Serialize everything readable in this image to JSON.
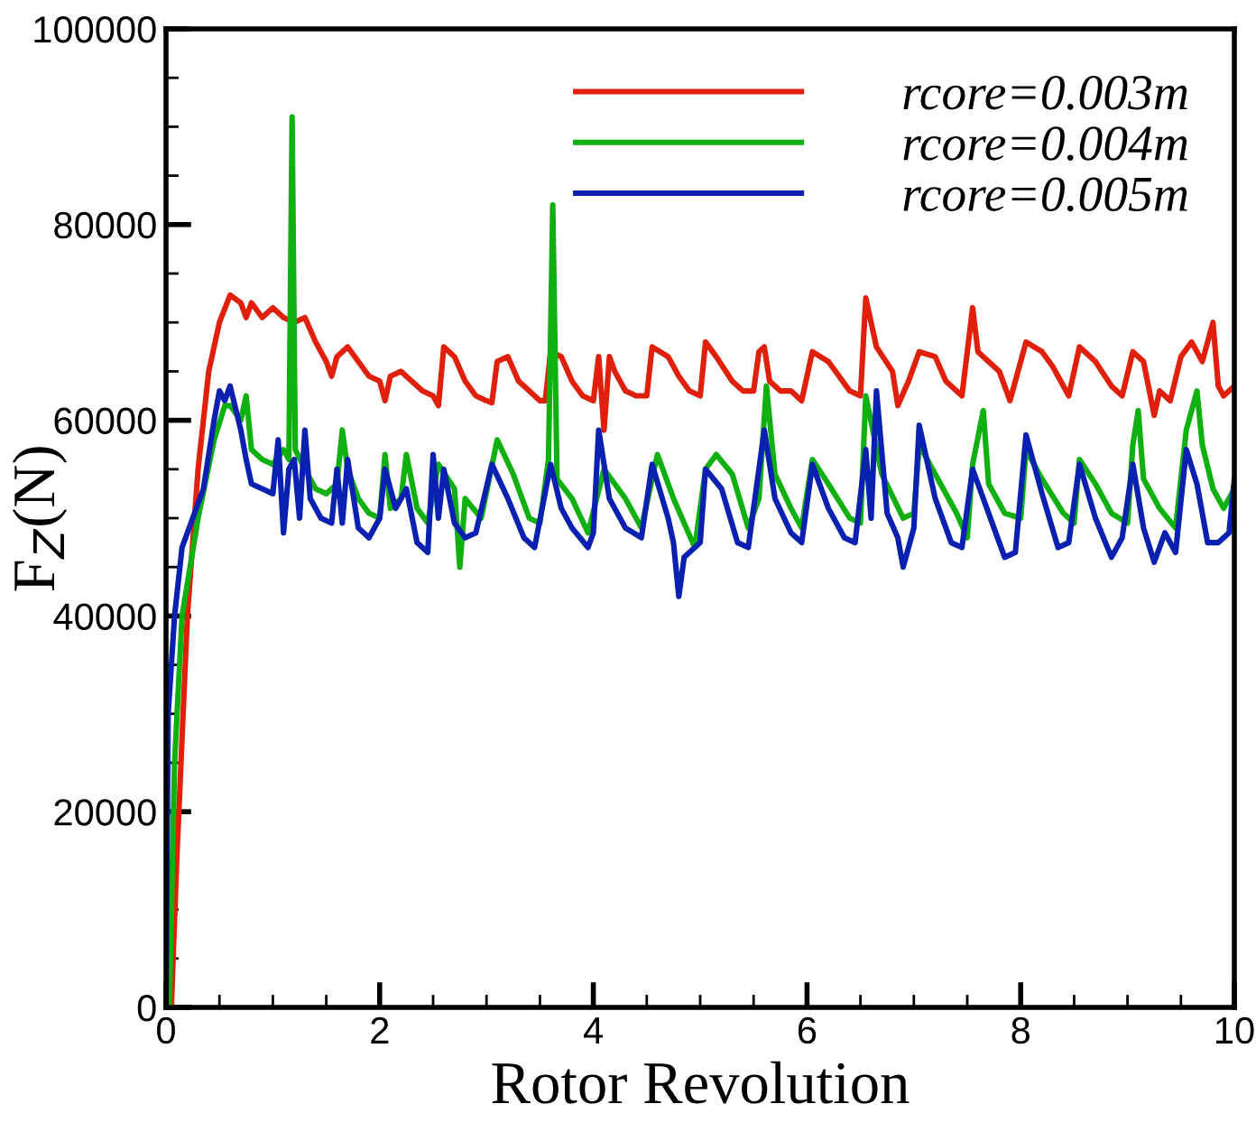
{
  "chart_data": {
    "type": "line",
    "xlabel": "Rotor Revolution",
    "ylabel": "F$_{Z}$(N)",
    "xlim": [
      0,
      10
    ],
    "ylim": [
      0,
      100000
    ],
    "xticks": [
      0,
      2,
      4,
      6,
      8,
      10
    ],
    "yticks": [
      0,
      20000,
      40000,
      60000,
      80000,
      100000
    ],
    "legend": "top right",
    "grid": false,
    "marker": "none",
    "line_style": "solid",
    "series": [
      {
        "name": "rcore=0.003m",
        "color": "#e0200a",
        "x": [
          0.05,
          0.1,
          0.2,
          0.3,
          0.4,
          0.5,
          0.6,
          0.7,
          0.75,
          0.8,
          0.9,
          1.0,
          1.1,
          1.2,
          1.3,
          1.4,
          1.5,
          1.55,
          1.6,
          1.7,
          1.8,
          1.9,
          2.0,
          2.05,
          2.1,
          2.2,
          2.3,
          2.4,
          2.5,
          2.55,
          2.6,
          2.7,
          2.8,
          2.9,
          3.0,
          3.05,
          3.1,
          3.2,
          3.3,
          3.4,
          3.5,
          3.55,
          3.6,
          3.7,
          3.8,
          3.9,
          4.0,
          4.05,
          4.1,
          4.15,
          4.2,
          4.3,
          4.4,
          4.5,
          4.55,
          4.7,
          4.8,
          4.9,
          5.0,
          5.05,
          5.15,
          5.3,
          5.4,
          5.5,
          5.55,
          5.6,
          5.65,
          5.75,
          5.85,
          5.95,
          6.05,
          6.2,
          6.3,
          6.4,
          6.5,
          6.55,
          6.65,
          6.8,
          6.85,
          6.95,
          7.05,
          7.2,
          7.3,
          7.45,
          7.55,
          7.6,
          7.8,
          7.9,
          8.05,
          8.2,
          8.3,
          8.45,
          8.55,
          8.7,
          8.85,
          8.95,
          9.05,
          9.15,
          9.25,
          9.3,
          9.4,
          9.5,
          9.6,
          9.7,
          9.8,
          9.85,
          9.9,
          10.0
        ],
        "values": [
          0,
          15000,
          40000,
          55000,
          65000,
          70000,
          72800,
          72000,
          70500,
          72000,
          70500,
          71500,
          70500,
          70000,
          70500,
          68000,
          66000,
          64500,
          66500,
          67500,
          66000,
          64500,
          64000,
          62000,
          64500,
          65000,
          64000,
          63000,
          62500,
          61500,
          67500,
          66500,
          64000,
          62500,
          62000,
          61800,
          66000,
          66500,
          64000,
          63000,
          62000,
          62000,
          67000,
          66500,
          64000,
          62500,
          62000,
          66500,
          59000,
          66500,
          65000,
          63000,
          62500,
          62500,
          67500,
          66500,
          64500,
          63000,
          62500,
          68000,
          66500,
          64000,
          63000,
          63000,
          67000,
          67500,
          64000,
          63000,
          63000,
          62000,
          67000,
          66000,
          64500,
          63000,
          62500,
          72500,
          67500,
          65000,
          61500,
          64000,
          67000,
          66500,
          64000,
          62500,
          71500,
          67000,
          65000,
          62000,
          68000,
          67000,
          65500,
          62500,
          67500,
          66000,
          63500,
          62500,
          67000,
          66000,
          60500,
          63000,
          62000,
          66500,
          68000,
          66000,
          70000,
          63500,
          62500,
          63500
        ]
      },
      {
        "name": "rcore=0.004m",
        "color": "#10b010",
        "x": [
          0.03,
          0.08,
          0.15,
          0.3,
          0.45,
          0.55,
          0.6,
          0.7,
          0.75,
          0.8,
          0.9,
          1.0,
          1.1,
          1.15,
          1.18,
          1.21,
          1.3,
          1.4,
          1.5,
          1.6,
          1.65,
          1.7,
          1.8,
          1.9,
          2.0,
          2.05,
          2.1,
          2.2,
          2.25,
          2.35,
          2.45,
          2.55,
          2.7,
          2.75,
          2.8,
          2.95,
          3.1,
          3.25,
          3.4,
          3.5,
          3.58,
          3.62,
          3.66,
          3.8,
          3.95,
          4.1,
          4.3,
          4.45,
          4.6,
          4.75,
          4.85,
          4.95,
          5.05,
          5.15,
          5.3,
          5.45,
          5.55,
          5.62,
          5.7,
          5.85,
          5.95,
          6.05,
          6.2,
          6.4,
          6.5,
          6.55,
          6.7,
          6.9,
          7.0,
          7.05,
          7.2,
          7.4,
          7.5,
          7.55,
          7.65,
          7.7,
          7.85,
          8.0,
          8.05,
          8.2,
          8.4,
          8.5,
          8.55,
          8.7,
          8.85,
          9.0,
          9.05,
          9.1,
          9.15,
          9.3,
          9.45,
          9.55,
          9.65,
          9.7,
          9.8,
          9.9,
          10.0
        ],
        "values": [
          0,
          25000,
          40000,
          50000,
          58000,
          61500,
          61500,
          60000,
          62500,
          57000,
          56000,
          55500,
          57000,
          56000,
          91000,
          57000,
          55000,
          53000,
          52500,
          53500,
          59000,
          55000,
          52000,
          50500,
          50000,
          56500,
          51000,
          52000,
          56500,
          51000,
          49500,
          55500,
          53000,
          45000,
          52000,
          50000,
          58000,
          54500,
          50000,
          49500,
          56000,
          82000,
          54000,
          52000,
          48500,
          55000,
          52000,
          49000,
          56500,
          52000,
          49500,
          47000,
          55000,
          56500,
          54500,
          49000,
          52000,
          63500,
          54500,
          51000,
          49000,
          56000,
          53500,
          50000,
          49500,
          62500,
          54500,
          50000,
          50500,
          57500,
          54500,
          50500,
          48000,
          55500,
          61000,
          53500,
          50500,
          50000,
          57000,
          54000,
          50500,
          49500,
          56000,
          53500,
          50500,
          49500,
          57500,
          61000,
          54000,
          51000,
          49000,
          59000,
          63000,
          57500,
          53000,
          51000,
          53000
        ]
      },
      {
        "name": "rcore=0.005m",
        "color": "#0a20b0",
        "x": [
          0.0,
          0.02,
          0.08,
          0.15,
          0.25,
          0.35,
          0.45,
          0.5,
          0.55,
          0.6,
          0.7,
          0.75,
          0.8,
          0.9,
          1.0,
          1.05,
          1.1,
          1.15,
          1.2,
          1.25,
          1.3,
          1.35,
          1.45,
          1.55,
          1.6,
          1.65,
          1.7,
          1.8,
          1.9,
          2.0,
          2.05,
          2.15,
          2.25,
          2.35,
          2.45,
          2.5,
          2.55,
          2.6,
          2.7,
          2.8,
          2.9,
          3.05,
          3.2,
          3.35,
          3.45,
          3.6,
          3.7,
          3.8,
          3.95,
          4.0,
          4.05,
          4.15,
          4.3,
          4.45,
          4.55,
          4.7,
          4.75,
          4.8,
          4.85,
          5.0,
          5.05,
          5.2,
          5.35,
          5.45,
          5.6,
          5.7,
          5.85,
          5.95,
          6.05,
          6.2,
          6.35,
          6.45,
          6.55,
          6.6,
          6.65,
          6.75,
          6.85,
          6.9,
          7.0,
          7.05,
          7.2,
          7.35,
          7.45,
          7.55,
          7.65,
          7.75,
          7.85,
          7.95,
          8.05,
          8.2,
          8.35,
          8.45,
          8.55,
          8.7,
          8.85,
          8.95,
          9.05,
          9.15,
          9.25,
          9.35,
          9.45,
          9.55,
          9.65,
          9.75,
          9.85,
          9.95,
          10.0
        ],
        "values": [
          0,
          30000,
          40000,
          47000,
          50000,
          53000,
          60000,
          63000,
          62000,
          63500,
          59000,
          56000,
          53500,
          53000,
          52500,
          58000,
          48500,
          55000,
          56000,
          50000,
          59000,
          52000,
          50000,
          49500,
          55000,
          49500,
          56000,
          49000,
          48000,
          50000,
          55000,
          51000,
          53000,
          47500,
          46500,
          56500,
          50000,
          55000,
          49500,
          48000,
          48500,
          55500,
          52000,
          48000,
          47000,
          55500,
          51000,
          49000,
          47000,
          48500,
          59000,
          52000,
          49000,
          48000,
          55500,
          50000,
          47500,
          42000,
          46000,
          47500,
          55000,
          53000,
          47500,
          47000,
          59000,
          52000,
          48500,
          47500,
          55500,
          51000,
          48000,
          47500,
          57000,
          50000,
          63000,
          50500,
          48000,
          45000,
          49000,
          59500,
          52000,
          47500,
          47000,
          55000,
          52000,
          49000,
          46000,
          46500,
          58500,
          52500,
          47000,
          47500,
          55500,
          50000,
          46000,
          48000,
          55500,
          49000,
          45500,
          48500,
          46500,
          57000,
          53500,
          47500,
          47500,
          48500,
          54000
        ]
      }
    ]
  }
}
